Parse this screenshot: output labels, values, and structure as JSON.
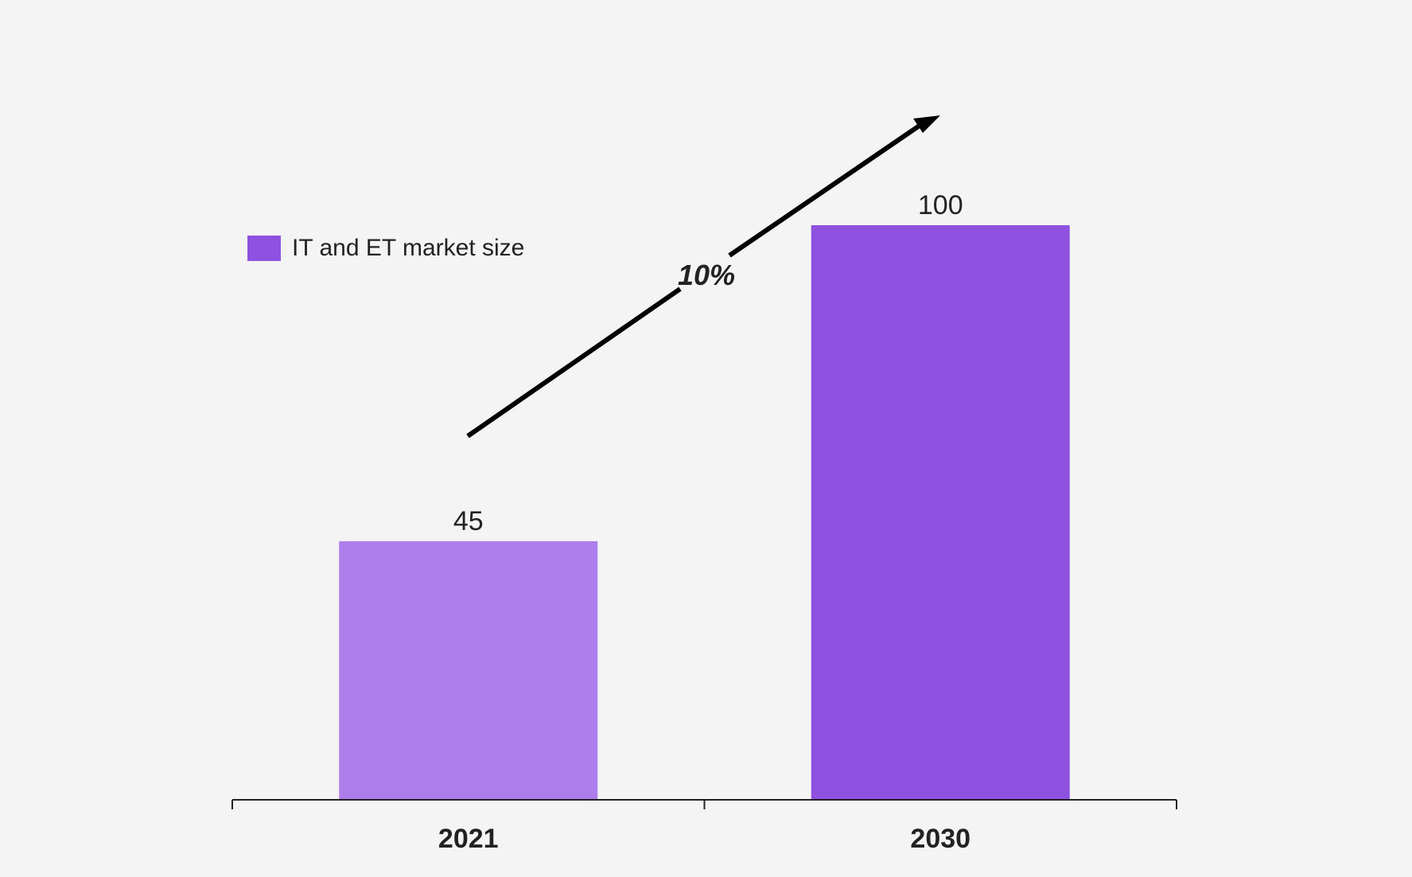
{
  "chart_data": {
    "type": "bar",
    "categories": [
      "2021",
      "2030"
    ],
    "series": [
      {
        "name": "IT and ET market size",
        "values": [
          45,
          100
        ]
      }
    ],
    "data_labels": [
      "45",
      "100"
    ],
    "bar_colors": [
      "#ad7deb",
      "#8e51e0"
    ],
    "legend": {
      "label": "IT and ET market size",
      "color": "#8e51e0",
      "placement": "top-left"
    },
    "annotation": {
      "label": "10%",
      "type": "growth-arrow",
      "from": "2021",
      "to": "2030"
    },
    "ylim": [
      0,
      100
    ],
    "grid": false,
    "title": "",
    "xlabel": "",
    "ylabel": ""
  },
  "colors": {
    "background": "#f4f4f4",
    "axis": "#222222",
    "text": "#222222",
    "arrow": "#000000"
  }
}
